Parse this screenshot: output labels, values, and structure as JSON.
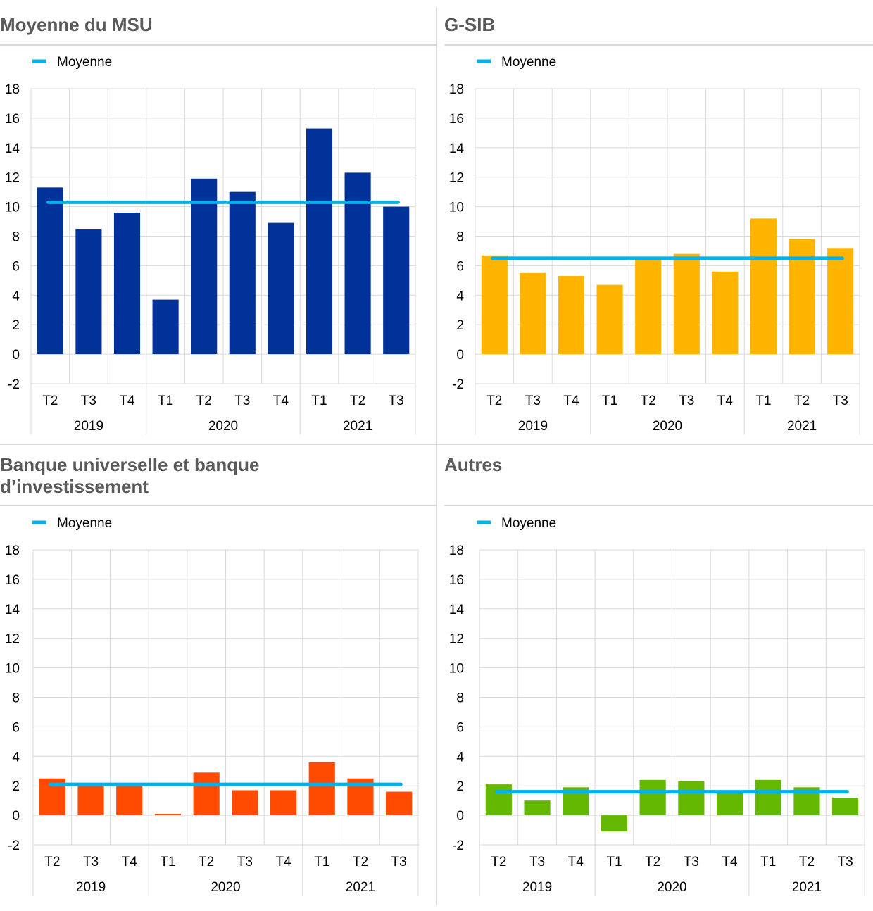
{
  "chart_data": [
    {
      "type": "bar",
      "title": "Moyenne du MSU",
      "legend": [
        "Moyenne"
      ],
      "categories": [
        "T2",
        "T3",
        "T4",
        "T1",
        "T2",
        "T3",
        "T4",
        "T1",
        "T2",
        "T3"
      ],
      "groups": [
        {
          "label": "2019",
          "count": 3
        },
        {
          "label": "2020",
          "count": 4
        },
        {
          "label": "2021",
          "count": 3
        }
      ],
      "values": [
        11.3,
        8.5,
        9.6,
        3.7,
        11.9,
        11.0,
        8.9,
        15.3,
        12.3,
        10.0
      ],
      "average": 10.3,
      "ylim": [
        -2,
        18
      ],
      "yticks": [
        -2,
        0,
        2,
        4,
        6,
        8,
        10,
        12,
        14,
        16,
        18
      ],
      "bar_color": "#003299",
      "line_color": "#00b1ea"
    },
    {
      "type": "bar",
      "title": "G-SIB",
      "legend": [
        "Moyenne"
      ],
      "categories": [
        "T2",
        "T3",
        "T4",
        "T1",
        "T2",
        "T3",
        "T4",
        "T1",
        "T2",
        "T3"
      ],
      "groups": [
        {
          "label": "2019",
          "count": 3
        },
        {
          "label": "2020",
          "count": 4
        },
        {
          "label": "2021",
          "count": 3
        }
      ],
      "values": [
        6.7,
        5.5,
        5.3,
        4.7,
        6.5,
        6.8,
        5.6,
        9.2,
        7.8,
        7.2
      ],
      "average": 6.5,
      "ylim": [
        -2,
        18
      ],
      "yticks": [
        -2,
        0,
        2,
        4,
        6,
        8,
        10,
        12,
        14,
        16,
        18
      ],
      "bar_color": "#ffb400",
      "line_color": "#00b1ea"
    },
    {
      "type": "bar",
      "title": "Banque universelle et banque\nd’investissement",
      "legend": [
        "Moyenne"
      ],
      "categories": [
        "T2",
        "T3",
        "T4",
        "T1",
        "T2",
        "T3",
        "T4",
        "T1",
        "T2",
        "T3"
      ],
      "groups": [
        {
          "label": "2019",
          "count": 3
        },
        {
          "label": "2020",
          "count": 4
        },
        {
          "label": "2021",
          "count": 3
        }
      ],
      "values": [
        2.5,
        2.0,
        2.1,
        0.1,
        2.9,
        1.7,
        1.7,
        3.6,
        2.5,
        1.6
      ],
      "average": 2.1,
      "ylim": [
        -2,
        18
      ],
      "yticks": [
        -2,
        0,
        2,
        4,
        6,
        8,
        10,
        12,
        14,
        16,
        18
      ],
      "bar_color": "#ff4b00",
      "line_color": "#00b1ea"
    },
    {
      "type": "bar",
      "title": "Autres",
      "legend": [
        "Moyenne"
      ],
      "categories": [
        "T2",
        "T3",
        "T4",
        "T1",
        "T2",
        "T3",
        "T4",
        "T1",
        "T2",
        "T3"
      ],
      "groups": [
        {
          "label": "2019",
          "count": 3
        },
        {
          "label": "2020",
          "count": 4
        },
        {
          "label": "2021",
          "count": 3
        }
      ],
      "values": [
        2.1,
        1.0,
        1.9,
        -1.1,
        2.4,
        2.3,
        1.5,
        2.4,
        1.9,
        1.2
      ],
      "average": 1.6,
      "ylim": [
        -2,
        18
      ],
      "yticks": [
        -2,
        0,
        2,
        4,
        6,
        8,
        10,
        12,
        14,
        16,
        18
      ],
      "bar_color": "#65b800",
      "line_color": "#00b1ea"
    }
  ]
}
